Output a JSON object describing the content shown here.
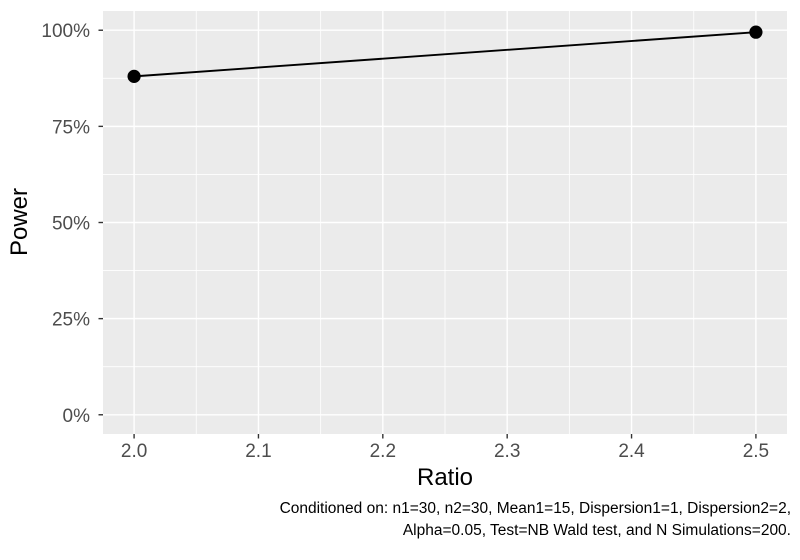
{
  "chart_data": {
    "type": "line",
    "title": "",
    "xlabel": "Ratio",
    "ylabel": "Power",
    "x": [
      2.0,
      2.5
    ],
    "series": [
      {
        "name": "Power (%)",
        "values": [
          88,
          99.5
        ]
      }
    ],
    "y_unit": "%",
    "xlim": [
      1.975,
      2.525
    ],
    "ylim": [
      -5,
      105
    ],
    "x_major_ticks": [
      2.0,
      2.1,
      2.2,
      2.3,
      2.4,
      2.5
    ],
    "x_tick_labels": [
      "2.0",
      "2.1",
      "2.2",
      "2.3",
      "2.4",
      "2.5"
    ],
    "x_minor_ticks": [
      2.05,
      2.15,
      2.25,
      2.35,
      2.45
    ],
    "y_major_ticks": [
      0,
      25,
      50,
      75,
      100
    ],
    "y_tick_labels": [
      "0%",
      "25%",
      "50%",
      "75%",
      "100%"
    ],
    "y_minor_ticks": [
      12.5,
      37.5,
      62.5,
      87.5
    ],
    "grid": "on",
    "legend": "none",
    "caption": "Conditioned on: n1=30, n2=30, Mean1=15, Dispersion1=1, Dispersion2=2, Alpha=0.05, Test=NB Wald test, and N Simulations=200.",
    "colors": {
      "panel_background": "#EBEBEB",
      "grid_line": "#FFFFFF",
      "series_line": "#000000",
      "point_fill": "#000000",
      "tick_label": "#4D4D4D",
      "tick_mark": "#333333",
      "axis_title": "#000000",
      "caption_text": "#000000",
      "plot_background": "#FFFFFF"
    }
  },
  "caption": {
    "line1": "Conditioned on: n1=30, n2=30, Mean1=15, Dispersion1=1, Dispersion2=2,",
    "line2": "Alpha=0.05, Test=NB Wald test, and N Simulations=200."
  }
}
